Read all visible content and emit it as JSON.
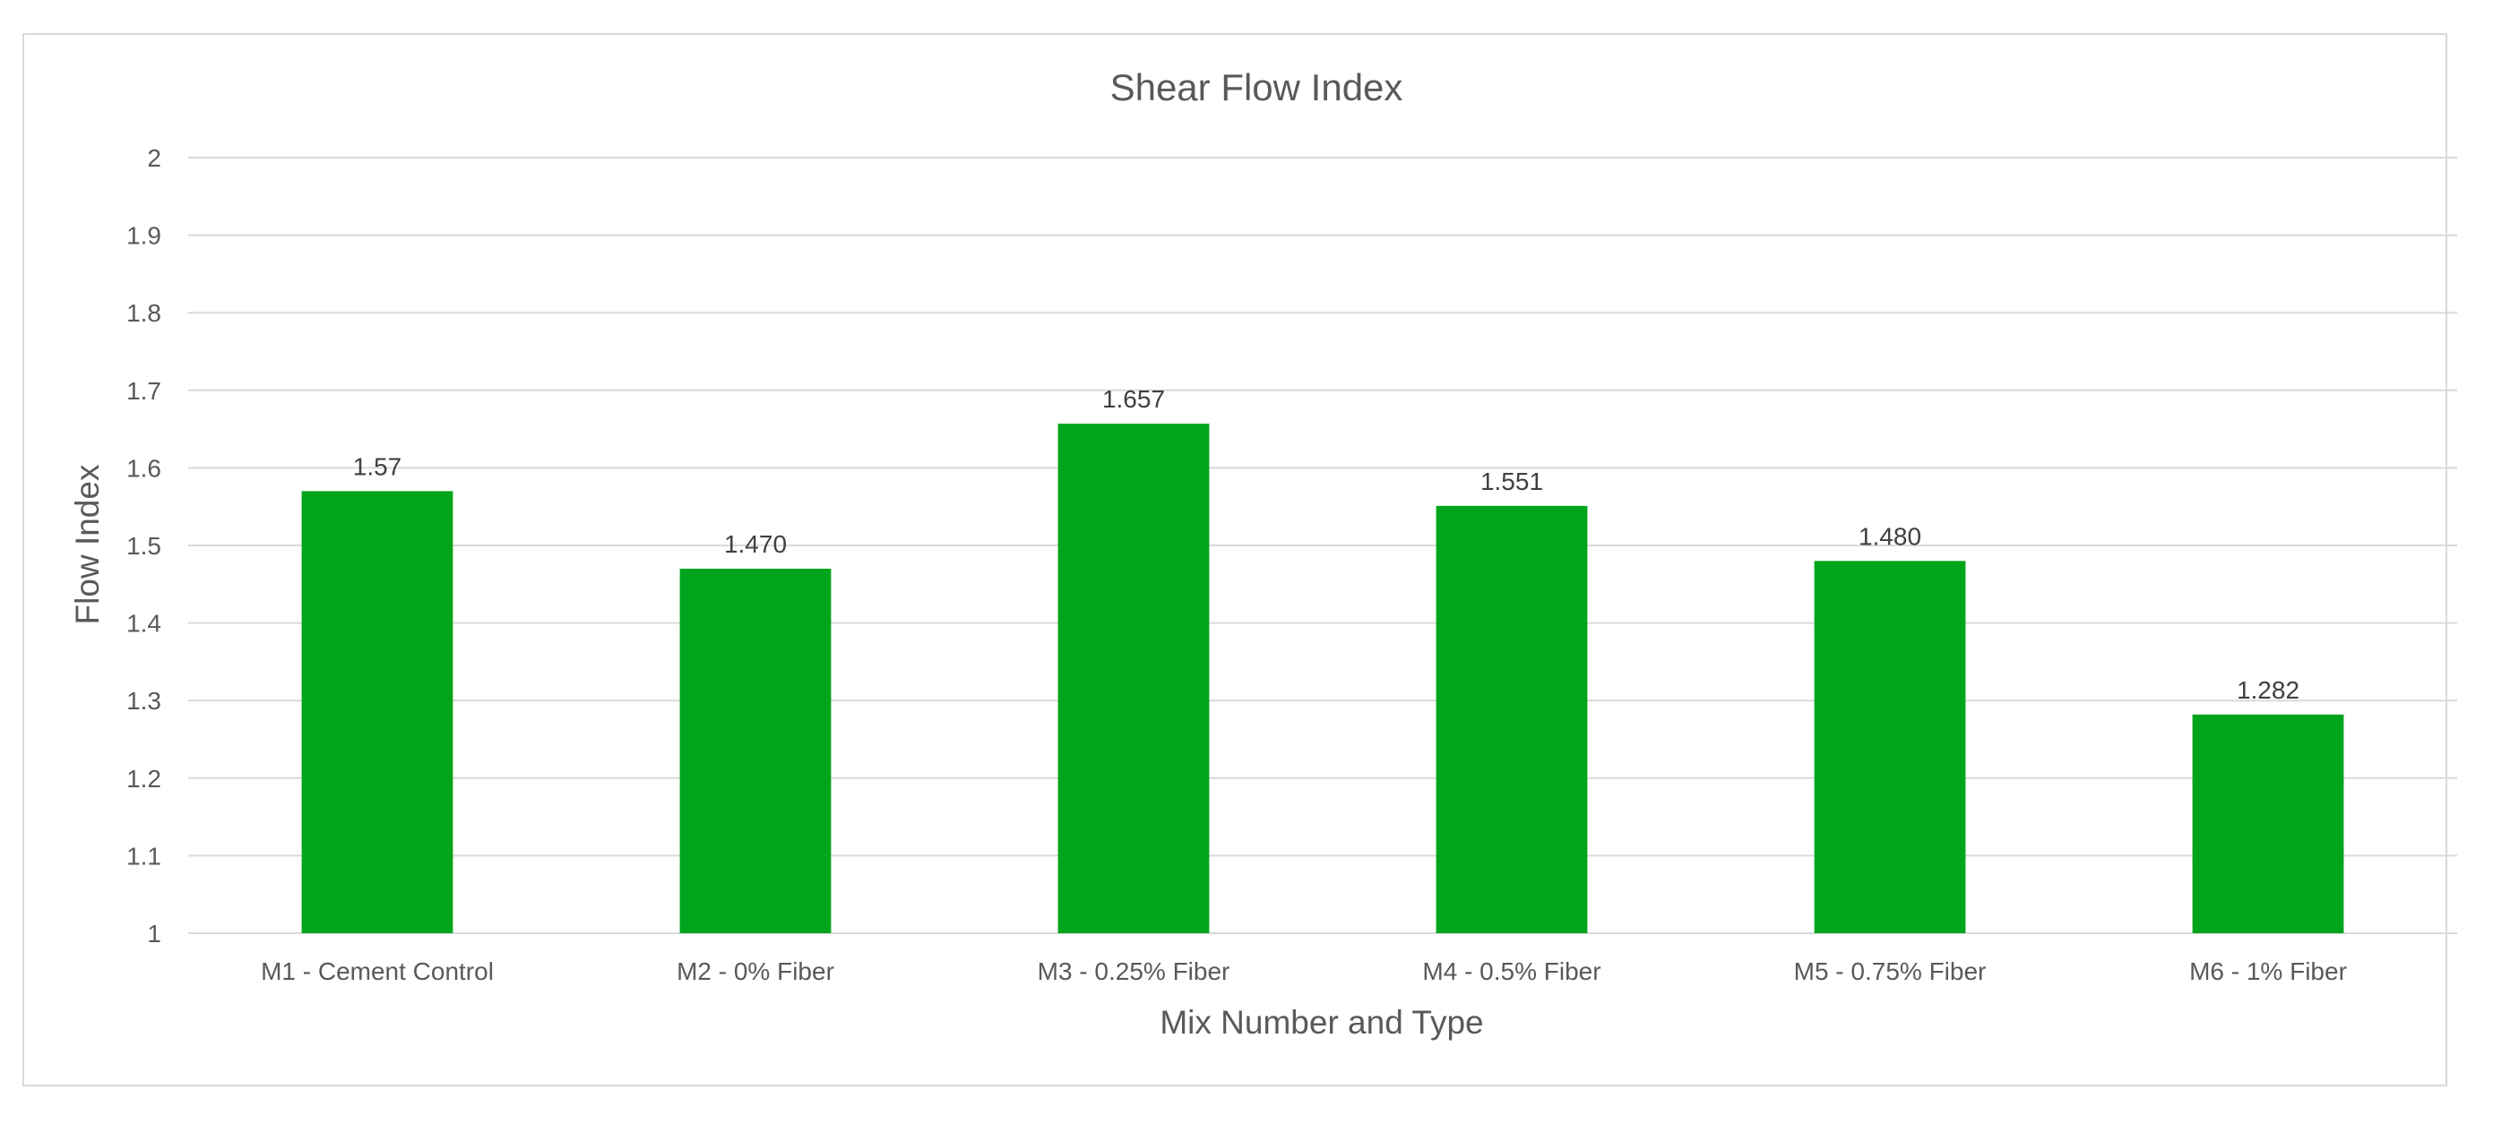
{
  "chart_data": {
    "type": "bar",
    "title": "Shear Flow Index",
    "xlabel": "Mix Number and Type",
    "ylabel": "Flow Index",
    "categories": [
      "M1 - Cement Control",
      "M2 - 0% Fiber",
      "M3 - 0.25% Fiber",
      "M4 - 0.5% Fiber",
      "M5 - 0.75% Fiber",
      "M6 - 1% Fiber"
    ],
    "values": [
      1.57,
      1.47,
      1.657,
      1.551,
      1.48,
      1.282
    ],
    "data_labels": [
      "1.57",
      "1.470",
      "1.657",
      "1.551",
      "1.480",
      "1.282"
    ],
    "ylim": [
      1,
      2
    ],
    "yticks": [
      1,
      1.1,
      1.2,
      1.3,
      1.4,
      1.5,
      1.6,
      1.7,
      1.8,
      1.9,
      2
    ],
    "ytick_labels": [
      "1",
      "1.1",
      "1.2",
      "1.3",
      "1.4",
      "1.5",
      "1.6",
      "1.7",
      "1.8",
      "1.9",
      "2"
    ],
    "grid": true,
    "legend": "none",
    "colors": {
      "bar": "#00a51c",
      "grid": "#d9d9d9",
      "text": "#595959"
    }
  }
}
